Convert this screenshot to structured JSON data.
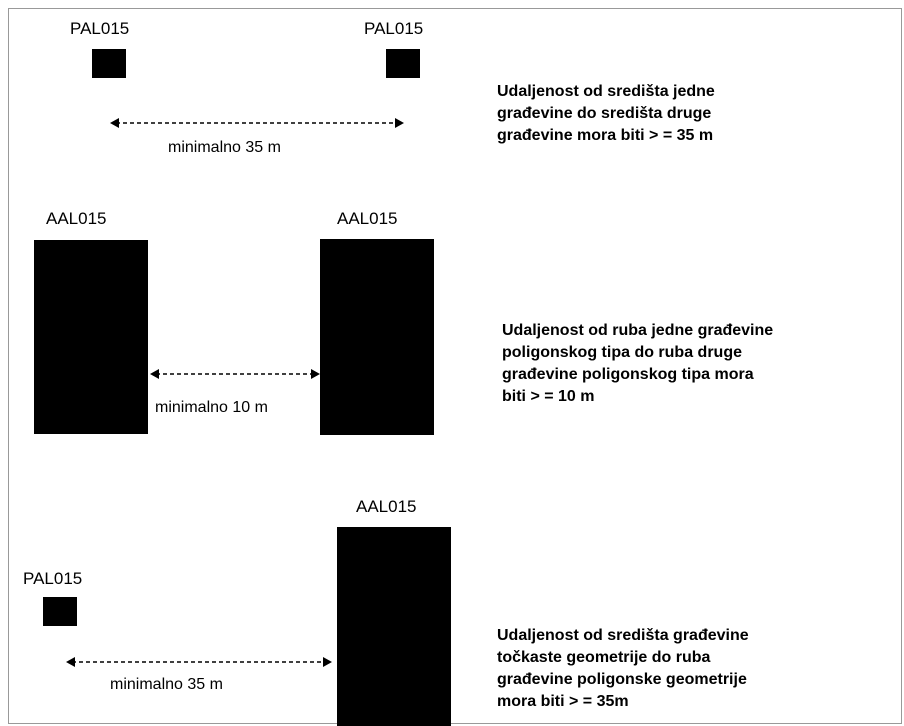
{
  "section1": {
    "left_label": "PAL015",
    "right_label": "PAL015",
    "distance_label": "minimalno 35 m",
    "description": "Udaljenost od središta jedne\ngrađevine do središta druge\ngrađevine mora biti > = 35 m"
  },
  "section2": {
    "left_label": "AAL015",
    "right_label": "AAL015",
    "distance_label": "minimalno 10 m",
    "description": "Udaljenost od ruba jedne građevine\npoligonskog tipa do ruba druge\ngrađevine poligonskog tipa mora\nbiti > = 10 m"
  },
  "section3": {
    "left_label": "PAL015",
    "right_label": "AAL015",
    "distance_label": "minimalno 35 m",
    "description": "Udaljenost od središta građevine\ntočkaste geometrije do ruba\ngrađevine poligonske geometrije\nmora biti > = 35m"
  }
}
